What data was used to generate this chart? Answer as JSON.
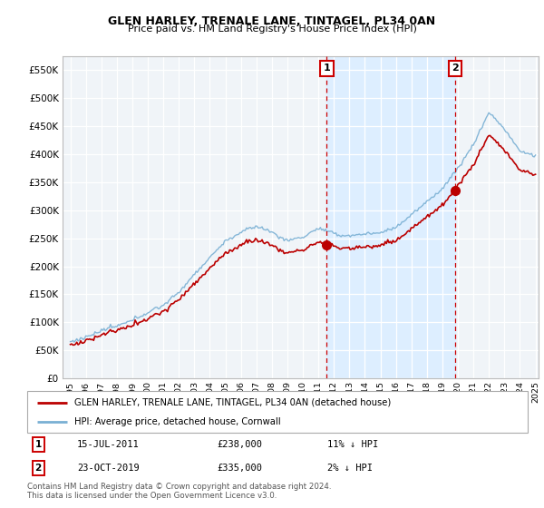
{
  "title": "GLEN HARLEY, TRENALE LANE, TINTAGEL, PL34 0AN",
  "subtitle": "Price paid vs. HM Land Registry's House Price Index (HPI)",
  "legend_label1": "GLEN HARLEY, TRENALE LANE, TINTAGEL, PL34 0AN (detached house)",
  "legend_label2": "HPI: Average price, detached house, Cornwall",
  "transaction1_date": "15-JUL-2011",
  "transaction1_price": 238000,
  "transaction1_hpi": "11% ↓ HPI",
  "transaction2_date": "23-OCT-2019",
  "transaction2_price": 335000,
  "transaction2_hpi": "2% ↓ HPI",
  "footer": "Contains HM Land Registry data © Crown copyright and database right 2024.\nThis data is licensed under the Open Government Licence v3.0.",
  "line1_color": "#bb0000",
  "line2_color": "#7ab0d4",
  "highlight_bg": "#ddeeff",
  "grid_color": "#cccccc",
  "bg_color": "#f0f4f8",
  "ylim": [
    0,
    575000
  ],
  "yticks": [
    0,
    50000,
    100000,
    150000,
    200000,
    250000,
    300000,
    350000,
    400000,
    450000,
    500000,
    550000
  ],
  "xlim_start": 1994.5,
  "xlim_end": 2025.2,
  "transaction1_x": 2011.54,
  "transaction2_x": 2019.81,
  "hpi_seed": 12345,
  "price_seed": 99999
}
